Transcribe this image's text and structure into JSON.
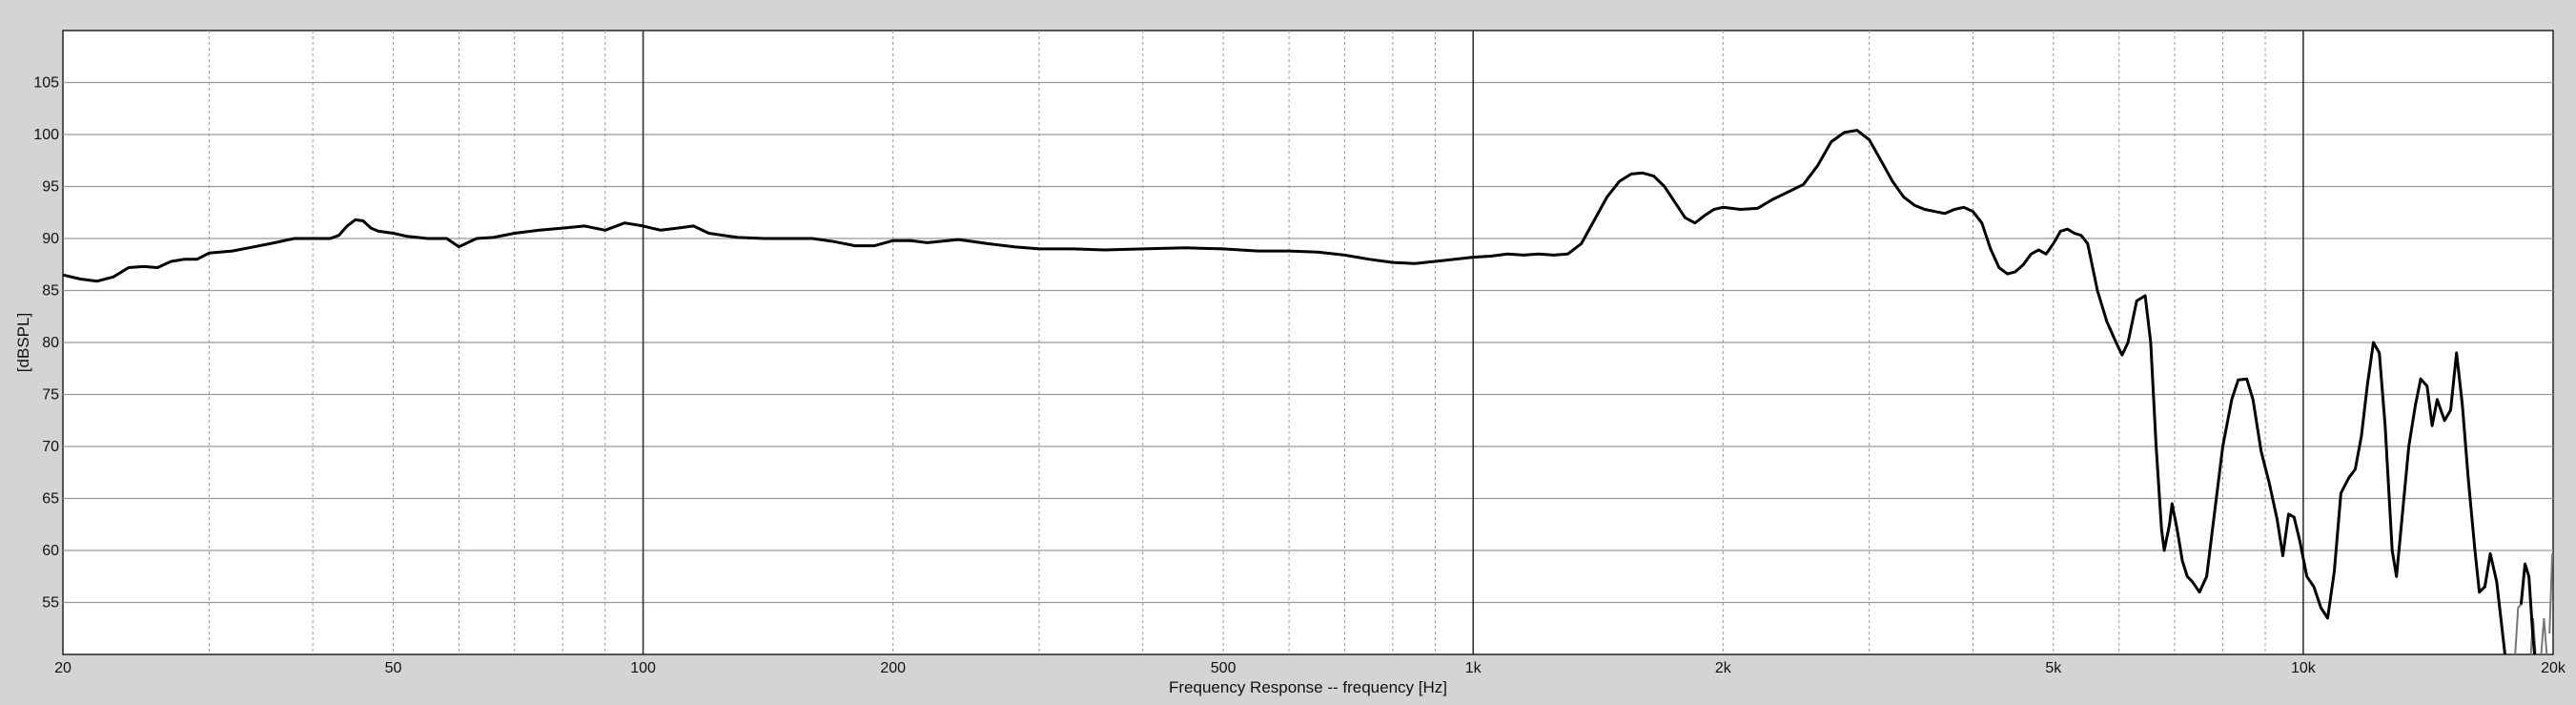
{
  "chart_data": {
    "type": "line",
    "xlabel": "Frequency Response -- frequency [Hz]",
    "ylabel": "[dBSPL]",
    "xscale": "log",
    "xlim": [
      20,
      20000
    ],
    "ylim": [
      50,
      110
    ],
    "x_tick_labels": [
      {
        "value": 20,
        "label": "20"
      },
      {
        "value": 50,
        "label": "50"
      },
      {
        "value": 100,
        "label": "100"
      },
      {
        "value": 200,
        "label": "200"
      },
      {
        "value": 500,
        "label": "500"
      },
      {
        "value": 1000,
        "label": "1k"
      },
      {
        "value": 2000,
        "label": "2k"
      },
      {
        "value": 5000,
        "label": "5k"
      },
      {
        "value": 10000,
        "label": "10k"
      },
      {
        "value": 20000,
        "label": "20k"
      }
    ],
    "y_ticks": [
      55,
      60,
      65,
      70,
      75,
      80,
      85,
      90,
      95,
      100,
      105
    ],
    "grid": true,
    "colors": {
      "background": "#d4d4d4",
      "plot_background": "#ffffff",
      "line": "#000000",
      "line_gray": "#777777",
      "grid": "#999999",
      "decade_grid": "#333333"
    },
    "series": [
      {
        "values": [
          [
            20,
            86.5
          ],
          [
            21,
            86.1
          ],
          [
            22,
            85.9
          ],
          [
            23,
            86.3
          ],
          [
            24,
            87.2
          ],
          [
            25,
            87.3
          ],
          [
            26,
            87.2
          ],
          [
            27,
            87.8
          ],
          [
            28,
            88.0
          ],
          [
            29,
            88.0
          ],
          [
            30,
            88.6
          ],
          [
            32,
            88.8
          ],
          [
            34,
            89.2
          ],
          [
            36,
            89.6
          ],
          [
            38,
            90.0
          ],
          [
            40,
            90.0
          ],
          [
            42,
            90.0
          ],
          [
            43,
            90.3
          ],
          [
            44,
            91.2
          ],
          [
            45,
            91.8
          ],
          [
            46,
            91.7
          ],
          [
            47,
            91.0
          ],
          [
            48,
            90.7
          ],
          [
            50,
            90.5
          ],
          [
            52,
            90.2
          ],
          [
            55,
            90.0
          ],
          [
            58,
            90.0
          ],
          [
            60,
            89.2
          ],
          [
            63,
            90.0
          ],
          [
            66,
            90.1
          ],
          [
            70,
            90.5
          ],
          [
            75,
            90.8
          ],
          [
            80,
            91.0
          ],
          [
            85,
            91.2
          ],
          [
            90,
            90.8
          ],
          [
            95,
            91.5
          ],
          [
            100,
            91.2
          ],
          [
            105,
            90.8
          ],
          [
            110,
            91.0
          ],
          [
            115,
            91.2
          ],
          [
            120,
            90.5
          ],
          [
            130,
            90.1
          ],
          [
            140,
            90.0
          ],
          [
            150,
            90.0
          ],
          [
            160,
            90.0
          ],
          [
            170,
            89.7
          ],
          [
            180,
            89.3
          ],
          [
            190,
            89.3
          ],
          [
            200,
            89.8
          ],
          [
            210,
            89.8
          ],
          [
            220,
            89.6
          ],
          [
            240,
            89.9
          ],
          [
            260,
            89.5
          ],
          [
            280,
            89.2
          ],
          [
            300,
            89.0
          ],
          [
            330,
            89.0
          ],
          [
            360,
            88.9
          ],
          [
            400,
            89.0
          ],
          [
            450,
            89.1
          ],
          [
            500,
            89.0
          ],
          [
            550,
            88.8
          ],
          [
            600,
            88.8
          ],
          [
            650,
            88.7
          ],
          [
            700,
            88.4
          ],
          [
            750,
            88.0
          ],
          [
            800,
            87.7
          ],
          [
            850,
            87.6
          ],
          [
            900,
            87.8
          ],
          [
            950,
            88.0
          ],
          [
            1000,
            88.2
          ],
          [
            1050,
            88.3
          ],
          [
            1100,
            88.5
          ],
          [
            1150,
            88.4
          ],
          [
            1200,
            88.5
          ],
          [
            1250,
            88.4
          ],
          [
            1300,
            88.5
          ],
          [
            1350,
            89.5
          ],
          [
            1400,
            91.8
          ],
          [
            1450,
            94.0
          ],
          [
            1500,
            95.5
          ],
          [
            1550,
            96.2
          ],
          [
            1600,
            96.3
          ],
          [
            1650,
            96.0
          ],
          [
            1700,
            95.0
          ],
          [
            1750,
            93.5
          ],
          [
            1800,
            92.0
          ],
          [
            1850,
            91.5
          ],
          [
            1900,
            92.2
          ],
          [
            1950,
            92.8
          ],
          [
            2000,
            93.0
          ],
          [
            2100,
            92.8
          ],
          [
            2200,
            92.9
          ],
          [
            2300,
            93.8
          ],
          [
            2400,
            94.5
          ],
          [
            2500,
            95.2
          ],
          [
            2600,
            97.0
          ],
          [
            2700,
            99.3
          ],
          [
            2800,
            100.2
          ],
          [
            2900,
            100.4
          ],
          [
            3000,
            99.5
          ],
          [
            3100,
            97.5
          ],
          [
            3200,
            95.5
          ],
          [
            3300,
            94.0
          ],
          [
            3400,
            93.2
          ],
          [
            3500,
            92.8
          ],
          [
            3600,
            92.6
          ],
          [
            3700,
            92.4
          ],
          [
            3800,
            92.8
          ],
          [
            3900,
            93.0
          ],
          [
            4000,
            92.6
          ],
          [
            4100,
            91.5
          ],
          [
            4200,
            89.0
          ],
          [
            4300,
            87.2
          ],
          [
            4400,
            86.6
          ],
          [
            4500,
            86.8
          ],
          [
            4600,
            87.5
          ],
          [
            4700,
            88.5
          ],
          [
            4800,
            88.9
          ],
          [
            4900,
            88.5
          ],
          [
            5000,
            89.5
          ],
          [
            5100,
            90.7
          ],
          [
            5200,
            90.9
          ],
          [
            5300,
            90.5
          ],
          [
            5400,
            90.3
          ],
          [
            5500,
            89.5
          ],
          [
            5650,
            85.0
          ],
          [
            5800,
            82.0
          ],
          [
            5950,
            80.0
          ],
          [
            6050,
            78.8
          ],
          [
            6150,
            80.0
          ],
          [
            6300,
            84.0
          ],
          [
            6450,
            84.5
          ],
          [
            6550,
            80.0
          ],
          [
            6650,
            70.0
          ],
          [
            6750,
            62.0
          ],
          [
            6800,
            60.0
          ],
          [
            6900,
            62.5
          ],
          [
            6950,
            64.5
          ],
          [
            7050,
            62.0
          ],
          [
            7150,
            59.0
          ],
          [
            7250,
            57.5
          ],
          [
            7350,
            57.0
          ],
          [
            7500,
            56.0
          ],
          [
            7650,
            57.5
          ],
          [
            7800,
            63.0
          ],
          [
            8000,
            70.0
          ],
          [
            8200,
            74.5
          ],
          [
            8350,
            76.4
          ],
          [
            8550,
            76.5
          ],
          [
            8700,
            74.5
          ],
          [
            8900,
            69.5
          ],
          [
            9100,
            66.5
          ],
          [
            9300,
            63.0
          ],
          [
            9450,
            59.5
          ],
          [
            9600,
            63.5
          ],
          [
            9750,
            63.2
          ],
          [
            9900,
            61.0
          ],
          [
            10100,
            57.5
          ],
          [
            10300,
            56.5
          ],
          [
            10500,
            54.5
          ],
          [
            10700,
            53.5
          ],
          [
            10900,
            58.0
          ],
          [
            11100,
            65.5
          ],
          [
            11350,
            67.0
          ],
          [
            11550,
            67.8
          ],
          [
            11750,
            71.0
          ],
          [
            11950,
            76.0
          ],
          [
            12150,
            80.0
          ],
          [
            12350,
            79.0
          ],
          [
            12550,
            72.0
          ],
          [
            12800,
            60.0
          ],
          [
            12950,
            57.5
          ],
          [
            13150,
            63.0
          ],
          [
            13400,
            70.0
          ],
          [
            13650,
            74.0
          ],
          [
            13850,
            76.5
          ],
          [
            14100,
            75.8
          ],
          [
            14300,
            72.0
          ],
          [
            14500,
            74.5
          ],
          [
            14800,
            72.5
          ],
          [
            15050,
            73.5
          ],
          [
            15300,
            79.0
          ],
          [
            15550,
            74.0
          ],
          [
            15800,
            67.0
          ],
          [
            16100,
            60.0
          ],
          [
            16300,
            56.0
          ],
          [
            16550,
            56.5
          ],
          [
            16800,
            59.7
          ],
          [
            17100,
            57.0
          ],
          [
            17500,
            50.0
          ]
        ]
      }
    ],
    "gray_fragments": [
      [
        [
          18000,
          50
        ],
        [
          18150,
          54.5
        ],
        [
          18300,
          54.8
        ]
      ],
      [
        [
          18800,
          50
        ],
        [
          18920,
          53.5
        ],
        [
          19050,
          50
        ]
      ],
      [
        [
          19350,
          50
        ],
        [
          19500,
          53.5
        ],
        [
          19650,
          50
        ]
      ],
      [
        [
          19800,
          52
        ],
        [
          19950,
          59.7
        ]
      ]
    ],
    "black_tail": [
      [
        18300,
        54.8
      ],
      [
        18500,
        58.7
      ],
      [
        18700,
        57.5
      ],
      [
        18900,
        52.0
      ],
      [
        19000,
        50
      ]
    ]
  }
}
